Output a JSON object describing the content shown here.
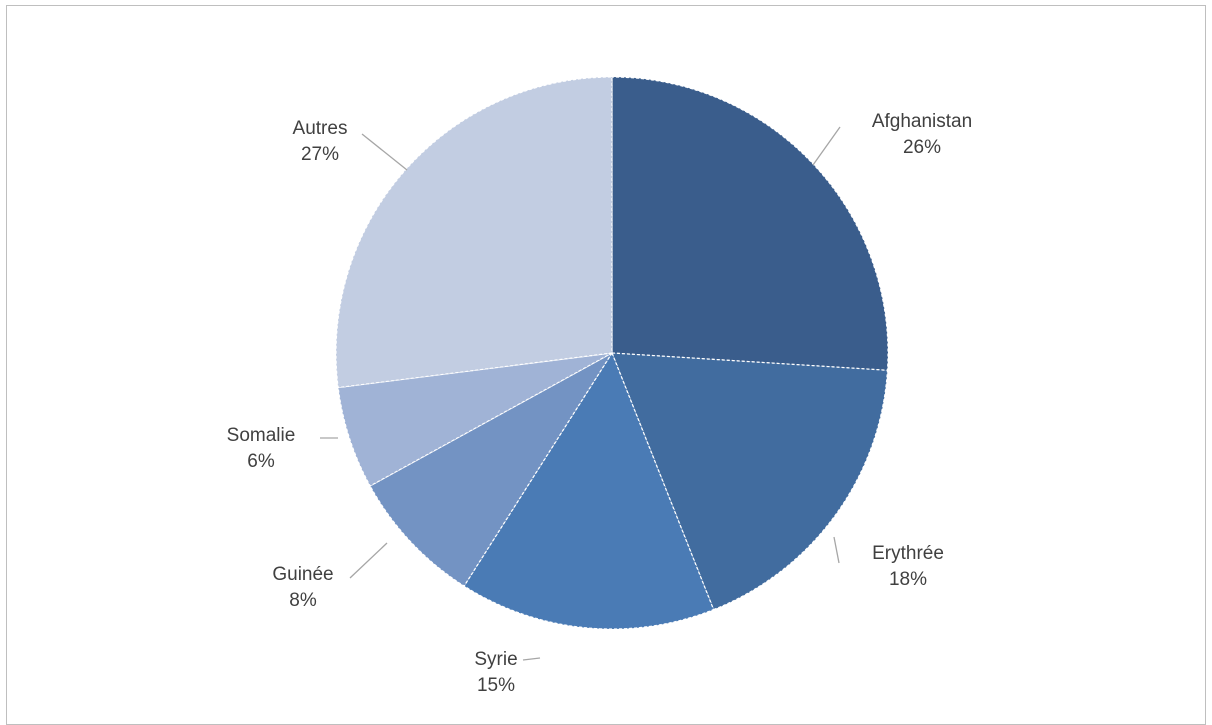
{
  "chart_data": {
    "type": "pie",
    "title": "",
    "slices": [
      {
        "label": "Afghanistan",
        "value": 26,
        "value_label": "26%",
        "color": "#3a5d8c"
      },
      {
        "label": "Erythrée",
        "value": 18,
        "value_label": "18%",
        "color": "#416c9f"
      },
      {
        "label": "Syrie",
        "value": 15,
        "value_label": "15%",
        "color": "#4a7bb5"
      },
      {
        "label": "Guinée",
        "value": 8,
        "value_label": "8%",
        "color": "#7393c3"
      },
      {
        "label": "Somalie",
        "value": 6,
        "value_label": "6%",
        "color": "#a0b3d6"
      },
      {
        "label": "Autres",
        "value": 27,
        "value_label": "27%",
        "color": "#c2cde2"
      }
    ],
    "start_angle_deg": 0,
    "direction": "clockwise",
    "labels_outside": true,
    "legend": "none"
  }
}
